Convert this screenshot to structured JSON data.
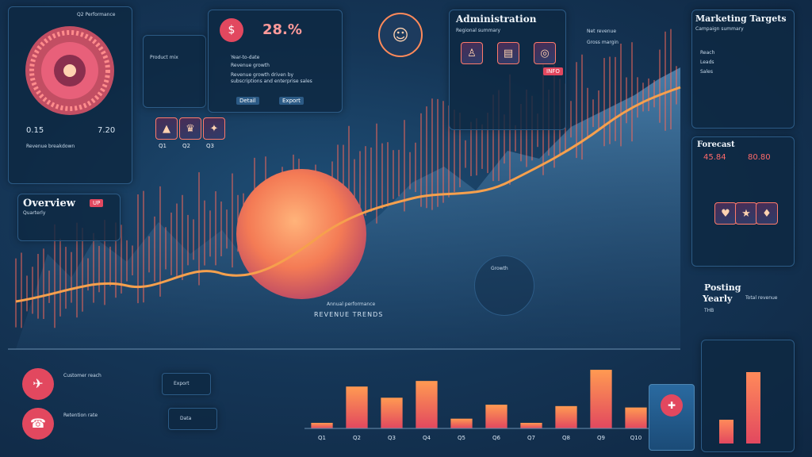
{
  "top_left": {
    "header": "Q2 Performance",
    "left_value": "0.15",
    "right_value": "7.20",
    "caption": "Revenue breakdown"
  },
  "overview": {
    "title": "Overview",
    "subtitle": "Quarterly",
    "tag": "UP"
  },
  "kpi": {
    "percent": "28.%",
    "title": "Year-to-date",
    "subtitle": "Revenue growth",
    "paragraph": "Revenue growth driven by subscriptions and enterprise sales"
  },
  "top_center": {
    "caption": "Product mix",
    "btn_a": "Detail",
    "btn_b": "Export",
    "tile_labels": [
      "Q1",
      "Q2",
      "Q3"
    ]
  },
  "admin": {
    "title": "Administration",
    "subtitle": "Regional summary",
    "tag": "INFO"
  },
  "top_right_mid": {
    "label_a": "Net revenue",
    "label_b": "Gross margin"
  },
  "marketing": {
    "title": "Marketing Targets",
    "subtitle": "Campaign summary",
    "items": [
      "Reach",
      "Leads",
      "Sales"
    ]
  },
  "forecast": {
    "title": "Forecast",
    "value_a": "45.84",
    "value_b": "80.80"
  },
  "posting": {
    "title": "Posting",
    "subtitle": "Yearly",
    "unit": "THB",
    "value": "Total revenue"
  },
  "center": {
    "label": "REVENUE TRENDS",
    "sublabel": "Annual performance",
    "note": "Growth"
  },
  "bottom_left": {
    "text_a": "Customer reach",
    "text_b": "Retention rate"
  },
  "bottom_tiles": [
    "Export",
    "Data"
  ],
  "chart_data": {
    "type": "bar",
    "categories": [
      "Q1",
      "Q2",
      "Q3",
      "Q4",
      "Q5",
      "Q6",
      "Q7",
      "Q8",
      "Q9",
      "Q10"
    ],
    "values": [
      8,
      60,
      44,
      68,
      14,
      34,
      8,
      32,
      84,
      30
    ],
    "ylim": [
      0,
      100
    ],
    "colors": [
      "#ff9a52",
      "#e2485f"
    ]
  },
  "colors": {
    "accent": "#ff8a3d",
    "brand": "#e2485f",
    "line": "#f6a04d"
  }
}
